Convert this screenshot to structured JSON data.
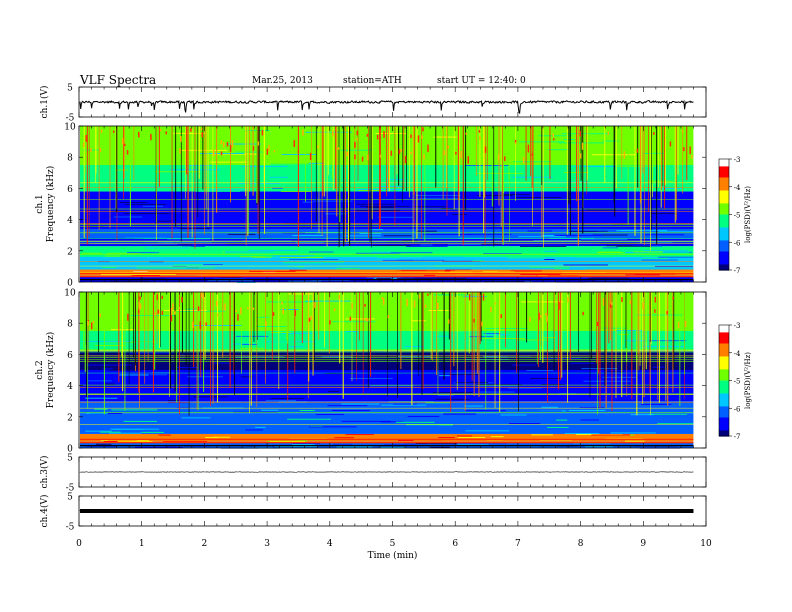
{
  "header": {
    "title": "VLF  Spectra",
    "date": "Mar.25, 2013",
    "station": "station=ATH",
    "start": "start  UT  =   12:40: 0"
  },
  "chart_data": [
    {
      "type": "line",
      "panel": "ch1-waveform",
      "ylabel": "ch.1(V)",
      "yticks": [
        "5",
        "-5"
      ],
      "ylim": [
        -5,
        5
      ],
      "xlim": [
        0,
        10
      ],
      "level": 0,
      "noise_amplitude": 0.5,
      "spike_amplitude": -4.5,
      "data_end_min": 9.8
    },
    {
      "type": "heatmap",
      "panel": "ch1-spectrogram",
      "ylabel": "ch.1\nFrequency  (kHz)",
      "yticks": [
        "0",
        "2",
        "4",
        "6",
        "8",
        "10"
      ],
      "ylim": [
        0,
        10
      ],
      "xlim": [
        0,
        10
      ],
      "data_end_min": 9.8,
      "colorbar": {
        "label": "log(PSD)(V²/Hz)",
        "ticks": [
          "-3",
          "-4",
          "-5",
          "-6",
          "-7"
        ],
        "range": [
          -7,
          -3
        ],
        "colors": [
          "#00007a",
          "#0000ff",
          "#0060ff",
          "#00c8ff",
          "#00ff80",
          "#70ff00",
          "#ffff00",
          "#ff8000",
          "#ff0000",
          "#ffffff"
        ]
      },
      "bands_khz": [
        {
          "from": 0,
          "to": 0.4,
          "log_psd": -6.5
        },
        {
          "from": 0.4,
          "to": 0.8,
          "log_psd": -3.7
        },
        {
          "from": 0.8,
          "to": 1.6,
          "log_psd": -5.8
        },
        {
          "from": 1.6,
          "to": 2.3,
          "log_psd": -5.4
        },
        {
          "from": 2.3,
          "to": 2.8,
          "log_psd": -6.6
        },
        {
          "from": 2.8,
          "to": 3.4,
          "log_psd": -6.2
        },
        {
          "from": 3.4,
          "to": 5.8,
          "log_psd": -6.7
        },
        {
          "from": 5.8,
          "to": 7.5,
          "log_psd": -5.3
        },
        {
          "from": 7.5,
          "to": 10,
          "log_psd": -4.9
        }
      ]
    },
    {
      "type": "heatmap",
      "panel": "ch2-spectrogram",
      "ylabel": "ch.2\nFrequency  (kHz)",
      "yticks": [
        "0",
        "2",
        "4",
        "6",
        "8",
        "10"
      ],
      "ylim": [
        0,
        10
      ],
      "xlim": [
        0,
        10
      ],
      "data_end_min": 9.8,
      "colorbar": {
        "label": "log(PSD)(V²/Hz)",
        "ticks": [
          "-3",
          "-4",
          "-5",
          "-6",
          "-7"
        ],
        "range": [
          -7,
          -3
        ],
        "colors": [
          "#00007a",
          "#0000ff",
          "#0060ff",
          "#00c8ff",
          "#00ff80",
          "#70ff00",
          "#ffff00",
          "#ff8000",
          "#ff0000",
          "#ffffff"
        ]
      },
      "bands_khz": [
        {
          "from": 0,
          "to": 0.4,
          "log_psd": -6.3
        },
        {
          "from": 0.4,
          "to": 0.9,
          "log_psd": -4.0
        },
        {
          "from": 0.9,
          "to": 2.2,
          "log_psd": -5.9
        },
        {
          "from": 2.2,
          "to": 3.0,
          "log_psd": -6.0
        },
        {
          "from": 3.0,
          "to": 5.0,
          "log_psd": -6.5
        },
        {
          "from": 5.0,
          "to": 6.2,
          "log_psd": -6.8
        },
        {
          "from": 6.2,
          "to": 7.5,
          "log_psd": -5.4
        },
        {
          "from": 7.5,
          "to": 10,
          "log_psd": -4.9
        }
      ]
    },
    {
      "type": "line",
      "panel": "ch3-waveform",
      "ylabel": "ch.3(V)",
      "yticks": [
        "5",
        "-5"
      ],
      "ylim": [
        -5,
        5
      ],
      "xlim": [
        0,
        10
      ],
      "level": 0,
      "noise_amplitude": 0.1,
      "data_end_min": 9.8
    },
    {
      "type": "line",
      "panel": "ch4-waveform",
      "ylabel": "ch.4(V)",
      "yticks": [
        "5",
        "-5"
      ],
      "ylim": [
        -5,
        5
      ],
      "xlim": [
        0,
        10
      ],
      "level": 0,
      "noise_amplitude": 0.35,
      "data_end_min": 9.8
    }
  ],
  "xaxis": {
    "label": "Time  (min)",
    "ticks": [
      "0",
      "1",
      "2",
      "3",
      "4",
      "5",
      "6",
      "7",
      "8",
      "9",
      "10"
    ],
    "range": [
      0,
      10
    ]
  }
}
